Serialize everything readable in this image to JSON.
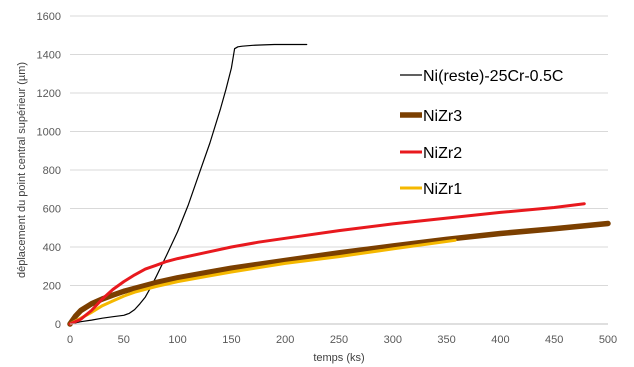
{
  "chart_data": {
    "type": "line",
    "title": "",
    "xlabel": "temps (ks)",
    "ylabel": "déplacement du point central supérieur (µm)",
    "xlim": [
      0,
      500
    ],
    "ylim": [
      0,
      1600
    ],
    "x_ticks": [
      "0",
      "50",
      "100",
      "150",
      "200",
      "250",
      "300",
      "350",
      "400",
      "450",
      "500"
    ],
    "y_ticks": [
      "0",
      "200",
      "400",
      "600",
      "800",
      "1000",
      "1200",
      "1400",
      "1600"
    ],
    "grid": "horizontal",
    "legend_position": "right",
    "series": [
      {
        "name": "Ni(reste)-25Cr-0.5C",
        "color": "#000000",
        "width": "thin",
        "x": [
          0,
          10,
          20,
          30,
          40,
          50,
          55,
          60,
          65,
          70,
          75,
          80,
          90,
          100,
          110,
          120,
          130,
          140,
          145,
          150,
          153,
          156,
          160,
          170,
          180,
          190,
          200,
          210,
          220
        ],
        "y": [
          0,
          12,
          20,
          30,
          38,
          45,
          55,
          75,
          105,
          140,
          190,
          245,
          360,
          480,
          620,
          780,
          940,
          1120,
          1220,
          1330,
          1430,
          1440,
          1443,
          1448,
          1450,
          1452,
          1452,
          1452,
          1452
        ]
      },
      {
        "name": "NiZr3",
        "color": "#7B3F00",
        "width": "thick",
        "x": [
          0,
          5,
          10,
          20,
          30,
          40,
          50,
          60,
          80,
          100,
          125,
          150,
          175,
          200,
          250,
          300,
          350,
          400,
          450,
          500
        ],
        "y": [
          0,
          40,
          70,
          105,
          130,
          150,
          170,
          185,
          215,
          240,
          265,
          290,
          310,
          330,
          370,
          405,
          440,
          470,
          495,
          522
        ]
      },
      {
        "name": "NiZr2",
        "color": "#E8191E",
        "width": "medium",
        "x": [
          0,
          10,
          20,
          30,
          40,
          50,
          60,
          70,
          80,
          90,
          100,
          125,
          150,
          175,
          200,
          250,
          300,
          350,
          400,
          450,
          478
        ],
        "y": [
          0,
          25,
          70,
          130,
          180,
          220,
          255,
          285,
          305,
          325,
          340,
          370,
          400,
          425,
          445,
          485,
          520,
          550,
          580,
          605,
          625
        ]
      },
      {
        "name": "NiZr1",
        "color": "#F5B800",
        "width": "medium",
        "x": [
          0,
          10,
          20,
          30,
          40,
          50,
          60,
          80,
          100,
          125,
          150,
          200,
          250,
          300,
          358
        ],
        "y": [
          0,
          30,
          60,
          95,
          120,
          145,
          165,
          195,
          220,
          245,
          270,
          315,
          350,
          390,
          435
        ]
      }
    ]
  }
}
